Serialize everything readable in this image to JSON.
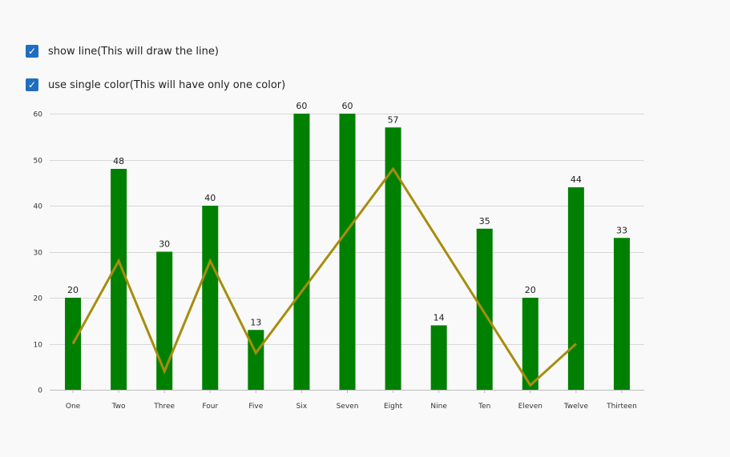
{
  "options": [
    {
      "label": "show line(This will draw the line)",
      "checked": true
    },
    {
      "label": "use single color(This will have only one color)",
      "checked": true
    }
  ],
  "chart_data": {
    "type": "bar",
    "categories": [
      "One",
      "Two",
      "Three",
      "Four",
      "Five",
      "Six",
      "Seven",
      "Eight",
      "Nine",
      "Ten",
      "Eleven",
      "Twelve",
      "Thirteen"
    ],
    "series": [
      {
        "type": "bar",
        "values": [
          20,
          48,
          30,
          40,
          13,
          60,
          60,
          57,
          14,
          35,
          20,
          44,
          33
        ],
        "color": "#008000"
      },
      {
        "type": "line",
        "values": [
          10,
          28,
          4,
          28,
          8,
          null,
          null,
          48,
          null,
          null,
          1,
          10,
          null
        ],
        "color": "#a78d0e"
      }
    ],
    "yticks": [
      0,
      10,
      20,
      30,
      40,
      50,
      60
    ],
    "ylim": [
      0,
      60
    ],
    "grid": true,
    "title": "",
    "xlabel": "",
    "ylabel": ""
  }
}
